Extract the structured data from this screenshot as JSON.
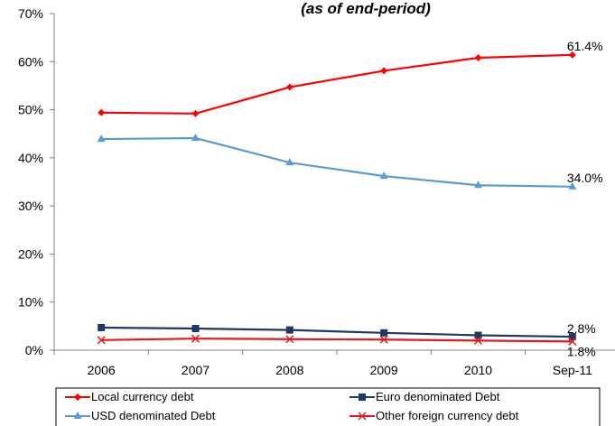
{
  "chart_data": {
    "type": "line",
    "title": "(as of end-period)",
    "xlabel": "",
    "ylabel": "",
    "categories": [
      "2006",
      "2007",
      "2008",
      "2009",
      "2010",
      "Sep-11"
    ],
    "ylim": [
      0,
      70
    ],
    "yticks": [
      "0%",
      "10%",
      "20%",
      "30%",
      "40%",
      "50%",
      "60%",
      "70%"
    ],
    "grid": false,
    "legend": "bottom",
    "series": [
      {
        "name": "Local currency debt",
        "values": [
          49.4,
          49.2,
          54.7,
          58.1,
          60.8,
          61.4
        ],
        "color": "#ff0000",
        "marker": "diamond",
        "end_label": "61.4%"
      },
      {
        "name": "Euro denominated Debt",
        "values": [
          4.7,
          4.5,
          4.2,
          3.6,
          3.1,
          2.8
        ],
        "color": "#1f3864",
        "marker": "square",
        "end_label": "2.8%"
      },
      {
        "name": "USD denominated Debt",
        "values": [
          43.9,
          44.1,
          39.0,
          36.2,
          34.3,
          34.0
        ],
        "color": "#5b9bd5",
        "marker": "triangle",
        "end_label": "34.0%"
      },
      {
        "name": "Other foreign currency debt",
        "values": [
          2.1,
          2.4,
          2.3,
          2.2,
          2.0,
          1.8
        ],
        "color": "#e31a1c",
        "marker": "x",
        "end_label": "1.8%"
      }
    ]
  }
}
